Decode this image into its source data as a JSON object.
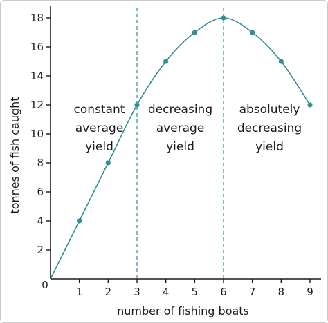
{
  "chart_data": {
    "type": "line",
    "xlabel": "number of fishing boats",
    "ylabel": "tonnes of fish caught",
    "xlim": [
      0,
      9
    ],
    "ylim": [
      0,
      18
    ],
    "x_ticks": [
      "1",
      "2",
      "3",
      "4",
      "5",
      "6",
      "7",
      "8",
      "9"
    ],
    "y_ticks": [
      "2",
      "4",
      "6",
      "8",
      "10",
      "12",
      "14",
      "16",
      "18"
    ],
    "origin_label": "0",
    "grid": false,
    "series": [
      {
        "x": [
          0,
          1,
          2,
          3,
          4,
          5,
          6,
          7,
          8,
          9
        ],
        "y": [
          0,
          4,
          8,
          12,
          15,
          17,
          18,
          17,
          15,
          12
        ]
      }
    ],
    "dividers": [
      3,
      6
    ],
    "regions": [
      {
        "lines": [
          "constant",
          "average",
          "yield"
        ]
      },
      {
        "lines": [
          "decreasing",
          "average",
          "yield"
        ]
      },
      {
        "lines": [
          "absolutely",
          "decreasing",
          "yield"
        ]
      }
    ],
    "colors": {
      "line": "#2f8f92",
      "marker": "#2f8f92",
      "divider": "#2f8f92",
      "axis": "#1a1a1a"
    }
  }
}
